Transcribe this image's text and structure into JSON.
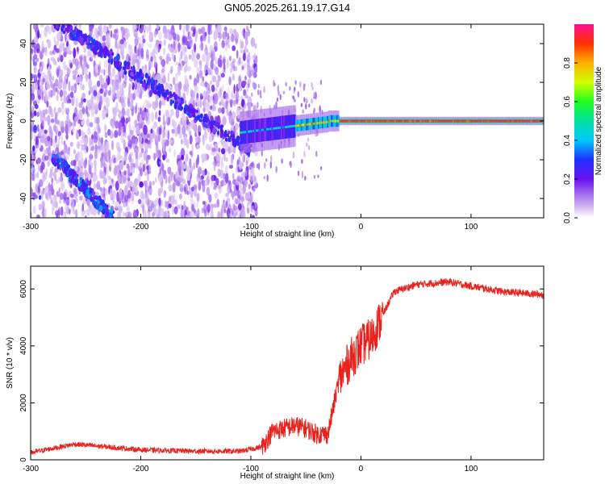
{
  "title": "GN05.2025.261.19.17.G14",
  "colors": {
    "snr_line": "#e8231e",
    "axis": "#000000",
    "background": "#ffffff"
  },
  "chart_data": [
    {
      "type": "heatmap",
      "name": "spectrogram",
      "xlabel": "Height of straight line (km)",
      "ylabel": "Frequency (Hz)",
      "xlim": [
        -300,
        166
      ],
      "ylim": [
        -50,
        50
      ],
      "xticks": [
        -300,
        -200,
        -100,
        0,
        100
      ],
      "yticks": [
        -40,
        -20,
        0,
        20,
        40
      ],
      "colorbar": {
        "label": "Normalized spectral amplitude",
        "range": [
          0.0,
          1.0
        ],
        "ticks": [
          0.0,
          0.2,
          0.4,
          0.6,
          0.8
        ]
      },
      "features": {
        "noise_region_x": [
          -300,
          -95
        ],
        "upper_diagonal_trace": {
          "x": [
            -300,
            -100
          ],
          "y": [
            60,
            -15
          ]
        },
        "lower_diagonal_trace": {
          "x": [
            -280,
            -225
          ],
          "y": [
            -18,
            -50
          ]
        },
        "carrier_line": {
          "x": [
            -110,
            166
          ],
          "y_center": 0,
          "peak_amplitude": 1.0
        }
      }
    },
    {
      "type": "line",
      "name": "snr",
      "xlabel": "Height of straight line (km)",
      "ylabel": "SNR (10 * v/v)",
      "xlim": [
        -300,
        166
      ],
      "ylim": [
        0,
        6800
      ],
      "xticks": [
        -300,
        -200,
        -100,
        0,
        100
      ],
      "yticks": [
        0,
        2000,
        4000,
        6000
      ],
      "x": [
        -300,
        -260,
        -200,
        -150,
        -110,
        -90,
        -80,
        -60,
        -50,
        -40,
        -30,
        -20,
        -10,
        0,
        10,
        20,
        30,
        50,
        80,
        100,
        130,
        166
      ],
      "values": [
        250,
        550,
        350,
        300,
        300,
        450,
        1000,
        1200,
        1100,
        900,
        900,
        2800,
        3500,
        4000,
        4300,
        5100,
        5900,
        6150,
        6250,
        6100,
        5900,
        5800
      ]
    }
  ]
}
